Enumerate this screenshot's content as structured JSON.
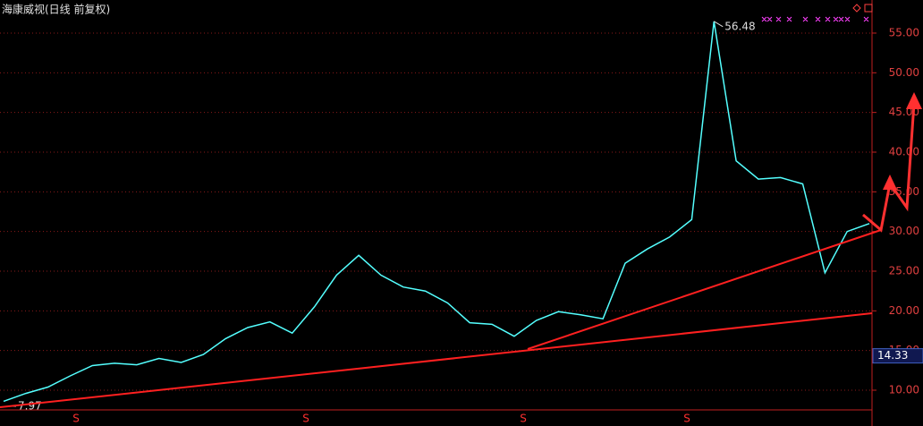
{
  "chart_data": {
    "type": "line",
    "title": "海康威视(日线 前复权)",
    "color": "#54ffff",
    "values": [
      8.6,
      9.6,
      10.4,
      11.8,
      13.1,
      13.4,
      13.2,
      14.0,
      13.5,
      14.5,
      16.5,
      17.9,
      18.6,
      17.2,
      20.5,
      24.5,
      27.0,
      24.5,
      23.0,
      22.5,
      21.0,
      18.5,
      18.3,
      16.8,
      18.8,
      19.9,
      19.5,
      19.0,
      26.0,
      27.8,
      29.3,
      31.5,
      56.48,
      38.9,
      36.6,
      36.8,
      36.0,
      24.8,
      30.0,
      31.0
    ],
    "high": 56.48,
    "low": 7.97,
    "price_marker": 14.33,
    "ylim": [
      7.52,
      59.17
    ],
    "yticks": [
      {
        "value": 10,
        "label": "10.00"
      },
      {
        "value": 15,
        "label": "15.00"
      },
      {
        "value": 20,
        "label": "20.00"
      },
      {
        "value": 25,
        "label": "25.00"
      },
      {
        "value": 30,
        "label": "30.00"
      },
      {
        "value": 35,
        "label": "35.00"
      },
      {
        "value": 40,
        "label": "40.00"
      },
      {
        "value": 45,
        "label": "45.00"
      },
      {
        "value": 50,
        "label": "50.00"
      },
      {
        "value": 55,
        "label": "55.00"
      }
    ],
    "grid": true,
    "signal_labels": [
      "S",
      "S",
      "S",
      "S"
    ]
  }
}
